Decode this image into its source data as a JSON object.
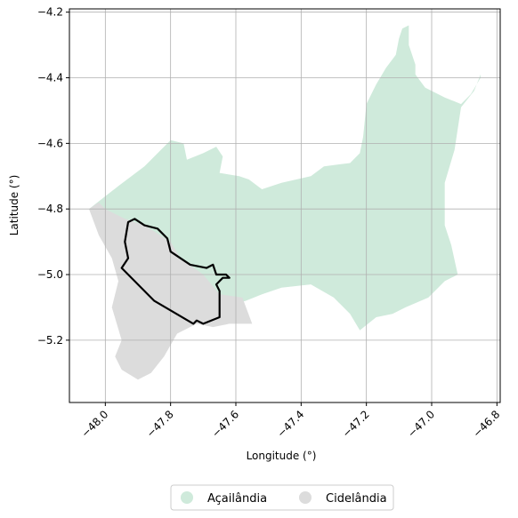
{
  "chart_data": {
    "type": "map",
    "xlabel": "Longitude (°)",
    "ylabel": "Latitude (°)",
    "xlim": [
      -48.11,
      -46.79
    ],
    "ylim": [
      -5.39,
      -4.19
    ],
    "x_ticks": [
      -48.0,
      -47.8,
      -47.6,
      -47.4,
      -47.2,
      -47.0,
      -46.8
    ],
    "x_tick_labels": [
      "−48.0",
      "−47.8",
      "−47.6",
      "−47.4",
      "−47.2",
      "−47.0",
      "−46.8"
    ],
    "y_ticks": [
      -4.2,
      -4.4,
      -4.6,
      -4.8,
      -5.0,
      -5.2
    ],
    "y_tick_labels": [
      "−4.2",
      "−4.4",
      "−4.6",
      "−4.8",
      "−5.0",
      "−5.2"
    ],
    "grid": true,
    "legend_position": "bottom-center",
    "regions": [
      {
        "name": "Açailândia",
        "color": "#cfeadb",
        "polygon": [
          [
            -48.05,
            -4.8
          ],
          [
            -47.96,
            -4.73
          ],
          [
            -47.88,
            -4.67
          ],
          [
            -47.8,
            -4.59
          ],
          [
            -47.76,
            -4.6
          ],
          [
            -47.75,
            -4.65
          ],
          [
            -47.7,
            -4.63
          ],
          [
            -47.66,
            -4.61
          ],
          [
            -47.64,
            -4.64
          ],
          [
            -47.65,
            -4.69
          ],
          [
            -47.59,
            -4.7
          ],
          [
            -47.56,
            -4.71
          ],
          [
            -47.52,
            -4.74
          ],
          [
            -47.46,
            -4.72
          ],
          [
            -47.37,
            -4.7
          ],
          [
            -47.33,
            -4.67
          ],
          [
            -47.25,
            -4.66
          ],
          [
            -47.22,
            -4.63
          ],
          [
            -47.21,
            -4.58
          ],
          [
            -47.2,
            -4.48
          ],
          [
            -47.17,
            -4.42
          ],
          [
            -47.14,
            -4.37
          ],
          [
            -47.11,
            -4.33
          ],
          [
            -47.1,
            -4.28
          ],
          [
            -47.09,
            -4.25
          ],
          [
            -47.07,
            -4.24
          ],
          [
            -47.07,
            -4.3
          ],
          [
            -47.05,
            -4.36
          ],
          [
            -47.05,
            -4.39
          ],
          [
            -47.02,
            -4.43
          ],
          [
            -46.96,
            -4.46
          ],
          [
            -46.91,
            -4.48
          ],
          [
            -46.88,
            -4.45
          ],
          [
            -46.85,
            -4.4
          ],
          [
            -46.85,
            -4.39
          ],
          [
            -46.87,
            -4.44
          ],
          [
            -46.91,
            -4.49
          ],
          [
            -46.93,
            -4.62
          ],
          [
            -46.96,
            -4.72
          ],
          [
            -46.96,
            -4.85
          ],
          [
            -46.94,
            -4.91
          ],
          [
            -46.92,
            -5.0
          ],
          [
            -46.96,
            -5.02
          ],
          [
            -47.01,
            -5.07
          ],
          [
            -47.08,
            -5.1
          ],
          [
            -47.12,
            -5.12
          ],
          [
            -47.17,
            -5.13
          ],
          [
            -47.22,
            -5.17
          ],
          [
            -47.25,
            -5.12
          ],
          [
            -47.3,
            -5.07
          ],
          [
            -47.37,
            -5.03
          ],
          [
            -47.46,
            -5.04
          ],
          [
            -47.52,
            -5.06
          ],
          [
            -47.57,
            -5.08
          ],
          [
            -47.65,
            -5.1
          ],
          [
            -47.75,
            -5.05
          ],
          [
            -47.85,
            -4.98
          ],
          [
            -47.94,
            -4.92
          ],
          [
            -48.0,
            -4.85
          ],
          [
            -48.05,
            -4.8
          ]
        ]
      },
      {
        "name": "Cidelândia",
        "color": "#dcdcdc",
        "polygon": [
          [
            -48.05,
            -4.8
          ],
          [
            -48.02,
            -4.78
          ],
          [
            -48.0,
            -4.8
          ],
          [
            -47.94,
            -4.83
          ],
          [
            -47.88,
            -4.85
          ],
          [
            -47.8,
            -4.9
          ],
          [
            -47.77,
            -4.95
          ],
          [
            -47.7,
            -5.0
          ],
          [
            -47.65,
            -5.06
          ],
          [
            -47.58,
            -5.07
          ],
          [
            -47.55,
            -5.15
          ],
          [
            -47.62,
            -5.15
          ],
          [
            -47.67,
            -5.16
          ],
          [
            -47.72,
            -5.15
          ],
          [
            -47.78,
            -5.18
          ],
          [
            -47.82,
            -5.25
          ],
          [
            -47.86,
            -5.3
          ],
          [
            -47.9,
            -5.32
          ],
          [
            -47.95,
            -5.29
          ],
          [
            -47.97,
            -5.25
          ],
          [
            -47.95,
            -5.2
          ],
          [
            -47.98,
            -5.1
          ],
          [
            -47.96,
            -5.02
          ],
          [
            -47.98,
            -4.95
          ],
          [
            -48.02,
            -4.88
          ],
          [
            -48.05,
            -4.8
          ]
        ]
      }
    ],
    "outline": [
      [
        -47.93,
        -4.84
      ],
      [
        -47.91,
        -4.83
      ],
      [
        -47.88,
        -4.85
      ],
      [
        -47.84,
        -4.86
      ],
      [
        -47.81,
        -4.89
      ],
      [
        -47.8,
        -4.93
      ],
      [
        -47.77,
        -4.95
      ],
      [
        -47.74,
        -4.97
      ],
      [
        -47.69,
        -4.98
      ],
      [
        -47.67,
        -4.97
      ],
      [
        -47.66,
        -5.0
      ],
      [
        -47.63,
        -5.0
      ],
      [
        -47.62,
        -5.01
      ],
      [
        -47.64,
        -5.01
      ],
      [
        -47.66,
        -5.03
      ],
      [
        -47.65,
        -5.05
      ],
      [
        -47.65,
        -5.13
      ],
      [
        -47.7,
        -5.15
      ],
      [
        -47.72,
        -5.14
      ],
      [
        -47.73,
        -5.15
      ],
      [
        -47.85,
        -5.08
      ],
      [
        -47.93,
        -5.0
      ],
      [
        -47.95,
        -4.98
      ],
      [
        -47.93,
        -4.95
      ],
      [
        -47.94,
        -4.9
      ],
      [
        -47.93,
        -4.84
      ]
    ]
  }
}
